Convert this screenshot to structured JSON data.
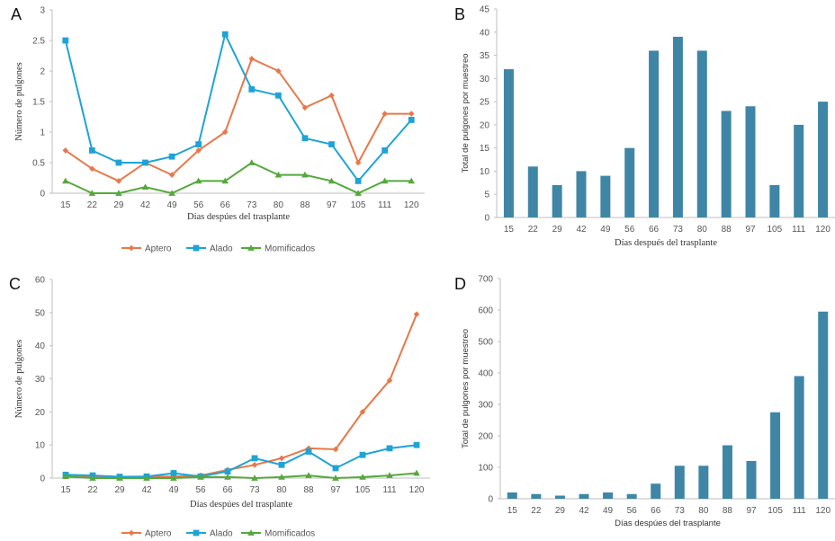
{
  "colors": {
    "aptero": "#E8784A",
    "alado": "#1FA3D6",
    "momificados": "#55A83C",
    "bar": "#3F86A6",
    "axis": "#bfbfbf"
  },
  "chart_data": [
    {
      "panel": "A",
      "type": "line",
      "categories": [
        "15",
        "22",
        "29",
        "42",
        "49",
        "56",
        "66",
        "73",
        "80",
        "88",
        "97",
        "105",
        "111",
        "120"
      ],
      "series": [
        {
          "name": "Aptero",
          "values": [
            0.7,
            0.4,
            0.2,
            0.5,
            0.3,
            0.7,
            1.0,
            2.2,
            2.0,
            1.4,
            1.6,
            0.5,
            1.3,
            1.3
          ]
        },
        {
          "name": "Alado",
          "values": [
            2.5,
            0.7,
            0.5,
            0.5,
            0.6,
            0.8,
            2.6,
            1.7,
            1.6,
            0.9,
            0.8,
            0.2,
            0.7,
            1.2
          ]
        },
        {
          "name": "Momificados",
          "values": [
            0.2,
            0.0,
            0.0,
            0.1,
            0.0,
            0.2,
            0.2,
            0.5,
            0.3,
            0.3,
            0.2,
            0.0,
            0.2,
            0.2
          ]
        }
      ],
      "ylim": [
        0,
        3
      ],
      "yticks": [
        "0",
        "0.5",
        "1",
        "1.5",
        "2",
        "2.5",
        "3"
      ],
      "xlabel": "Días despúes del trasplante",
      "ylabel": "Número de pulgones",
      "legend": "bottom"
    },
    {
      "panel": "B",
      "type": "bar",
      "categories": [
        "15",
        "22",
        "29",
        "42",
        "49",
        "56",
        "66",
        "73",
        "80",
        "88",
        "97",
        "105",
        "111",
        "120"
      ],
      "values": [
        32,
        11,
        7,
        10,
        9,
        15,
        36,
        39,
        36,
        23,
        24,
        7,
        20,
        25
      ],
      "ylim": [
        0,
        45
      ],
      "yticks": [
        "0",
        "5",
        "10",
        "15",
        "20",
        "25",
        "30",
        "35",
        "40",
        "45"
      ],
      "xlabel": "Días después del trasplante",
      "ylabel": "Total de pulgones por muestreo"
    },
    {
      "panel": "C",
      "type": "line",
      "categories": [
        "15",
        "22",
        "29",
        "42",
        "49",
        "56",
        "66",
        "73",
        "80",
        "88",
        "97",
        "105",
        "111",
        "120"
      ],
      "series": [
        {
          "name": "Aptero",
          "values": [
            1,
            0.5,
            0.3,
            0.5,
            0.5,
            0.8,
            2.5,
            4,
            6,
            9,
            8.7,
            20,
            29.5,
            49.5
          ]
        },
        {
          "name": "Alado",
          "values": [
            1,
            0.8,
            0.4,
            0.5,
            1.5,
            0.5,
            2,
            6,
            4,
            8,
            3,
            7,
            9,
            10
          ]
        },
        {
          "name": "Momificados",
          "values": [
            0.5,
            0,
            0,
            0,
            0,
            0.3,
            0.3,
            0,
            0.3,
            0.8,
            0,
            0.3,
            0.8,
            1.5
          ]
        }
      ],
      "ylim": [
        0,
        60
      ],
      "yticks": [
        "0",
        "10",
        "20",
        "30",
        "40",
        "50",
        "60"
      ],
      "xlabel": "Días despúes del trasplante",
      "ylabel": "Número de pulgones",
      "legend": "bottom"
    },
    {
      "panel": "D",
      "type": "bar",
      "categories": [
        "15",
        "22",
        "29",
        "42",
        "49",
        "56",
        "66",
        "73",
        "80",
        "88",
        "97",
        "105",
        "111",
        "120"
      ],
      "values": [
        20,
        15,
        10,
        15,
        20,
        15,
        48,
        105,
        105,
        170,
        120,
        275,
        390,
        595
      ],
      "ylim": [
        0,
        700
      ],
      "yticks": [
        "0",
        "100",
        "200",
        "300",
        "400",
        "500",
        "600",
        "700"
      ],
      "xlabel": "Días despúes del trasplante",
      "ylabel": "Total de pulgones por muestreo"
    }
  ]
}
